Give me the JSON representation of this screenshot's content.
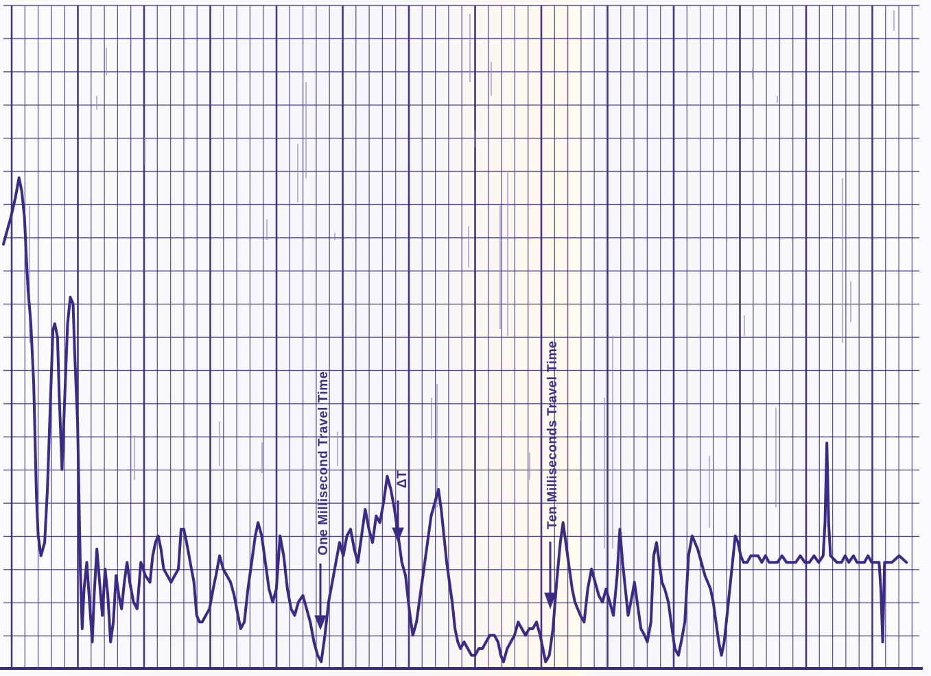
{
  "chart_data": {
    "type": "line",
    "title": "",
    "xlabel": "",
    "ylabel": "",
    "grid": true,
    "legend": "none",
    "colors": {
      "paper": "#fbfaff",
      "grid": "#3a2d7c",
      "trace": "#3b2a86",
      "faint_trace": "#8f87c7"
    },
    "annotations": {
      "one_ms": "One Millisecond Travel Time",
      "ten_ms": "Ten Milliseconds Travel Time",
      "delta_t": "ΔT"
    },
    "x_range": [
      0,
      1000
    ],
    "y_range": [
      0,
      100
    ],
    "trace": [
      [
        0,
        64
      ],
      [
        4,
        66
      ],
      [
        8,
        68
      ],
      [
        13,
        71
      ],
      [
        17,
        74
      ],
      [
        20,
        72
      ],
      [
        23,
        68
      ],
      [
        25,
        62
      ],
      [
        27,
        57
      ],
      [
        30,
        52
      ],
      [
        33,
        43
      ],
      [
        36,
        26
      ],
      [
        38,
        20
      ],
      [
        41,
        17
      ],
      [
        45,
        19
      ],
      [
        48,
        27
      ],
      [
        51,
        39
      ],
      [
        54,
        51
      ],
      [
        56,
        52
      ],
      [
        59,
        50
      ],
      [
        61,
        41
      ],
      [
        64,
        30
      ],
      [
        67,
        41
      ],
      [
        70,
        52
      ],
      [
        73,
        56
      ],
      [
        76,
        55
      ],
      [
        78,
        47
      ],
      [
        81,
        37
      ],
      [
        84,
        15
      ],
      [
        86,
        6
      ],
      [
        88,
        12
      ],
      [
        91,
        16
      ],
      [
        94,
        10
      ],
      [
        97,
        4
      ],
      [
        99,
        11
      ],
      [
        102,
        18
      ],
      [
        105,
        13
      ],
      [
        108,
        8
      ],
      [
        111,
        15
      ],
      [
        114,
        11
      ],
      [
        117,
        4
      ],
      [
        120,
        7
      ],
      [
        123,
        14
      ],
      [
        126,
        11
      ],
      [
        129,
        9
      ],
      [
        132,
        13
      ],
      [
        135,
        16
      ],
      [
        138,
        13
      ],
      [
        142,
        10
      ],
      [
        146,
        9
      ],
      [
        150,
        16
      ],
      [
        155,
        14
      ],
      [
        160,
        13
      ],
      [
        163,
        17
      ],
      [
        166,
        19
      ],
      [
        169,
        20
      ],
      [
        172,
        18
      ],
      [
        175,
        15
      ],
      [
        179,
        14
      ],
      [
        183,
        13
      ],
      [
        187,
        14
      ],
      [
        191,
        15
      ],
      [
        194,
        21
      ],
      [
        197,
        21
      ],
      [
        200,
        19
      ],
      [
        204,
        16
      ],
      [
        208,
        13
      ],
      [
        211,
        8
      ],
      [
        214,
        7
      ],
      [
        217,
        7
      ],
      [
        221,
        8
      ],
      [
        225,
        9
      ],
      [
        229,
        12
      ],
      [
        232,
        14
      ],
      [
        236,
        17
      ],
      [
        240,
        15
      ],
      [
        244,
        14
      ],
      [
        248,
        13
      ],
      [
        252,
        11
      ],
      [
        256,
        8
      ],
      [
        259,
        6
      ],
      [
        263,
        7
      ],
      [
        267,
        12
      ],
      [
        271,
        16
      ],
      [
        275,
        20
      ],
      [
        278,
        22
      ],
      [
        282,
        20
      ],
      [
        286,
        16
      ],
      [
        290,
        12
      ],
      [
        294,
        10
      ],
      [
        298,
        12
      ],
      [
        302,
        20
      ],
      [
        306,
        17
      ],
      [
        310,
        12
      ],
      [
        314,
        9
      ],
      [
        318,
        8
      ],
      [
        322,
        10
      ],
      [
        327,
        11
      ],
      [
        331,
        9
      ],
      [
        335,
        7
      ],
      [
        339,
        4
      ],
      [
        343,
        2
      ],
      [
        347,
        1
      ],
      [
        351,
        5
      ],
      [
        355,
        10
      ],
      [
        359,
        13
      ],
      [
        363,
        16
      ],
      [
        367,
        19
      ],
      [
        371,
        17
      ],
      [
        375,
        20
      ],
      [
        379,
        21
      ],
      [
        383,
        18
      ],
      [
        387,
        16
      ],
      [
        391,
        20
      ],
      [
        395,
        24
      ],
      [
        399,
        21
      ],
      [
        403,
        19
      ],
      [
        407,
        23
      ],
      [
        411,
        22
      ],
      [
        415,
        25
      ],
      [
        419,
        29
      ],
      [
        423,
        27
      ],
      [
        427,
        24
      ],
      [
        431,
        20
      ],
      [
        435,
        16
      ],
      [
        439,
        14
      ],
      [
        443,
        9
      ],
      [
        447,
        5
      ],
      [
        451,
        7
      ],
      [
        455,
        11
      ],
      [
        459,
        15
      ],
      [
        463,
        19
      ],
      [
        467,
        23
      ],
      [
        471,
        25
      ],
      [
        475,
        27
      ],
      [
        478,
        24
      ],
      [
        481,
        20
      ],
      [
        484,
        16
      ],
      [
        487,
        13
      ],
      [
        490,
        10
      ],
      [
        493,
        6
      ],
      [
        496,
        4
      ],
      [
        499,
        3
      ],
      [
        503,
        4
      ],
      [
        507,
        3
      ],
      [
        511,
        2
      ],
      [
        515,
        2
      ],
      [
        519,
        3
      ],
      [
        523,
        3
      ],
      [
        527,
        4
      ],
      [
        531,
        5
      ],
      [
        536,
        5
      ],
      [
        540,
        4
      ],
      [
        543,
        2
      ],
      [
        546,
        1
      ],
      [
        550,
        3
      ],
      [
        554,
        4
      ],
      [
        558,
        5
      ],
      [
        562,
        7
      ],
      [
        566,
        6
      ],
      [
        570,
        5
      ],
      [
        574,
        6
      ],
      [
        578,
        6
      ],
      [
        582,
        7
      ],
      [
        586,
        5
      ],
      [
        589,
        3
      ],
      [
        592,
        1
      ],
      [
        596,
        2
      ],
      [
        600,
        6
      ],
      [
        604,
        13
      ],
      [
        608,
        19
      ],
      [
        611,
        22
      ],
      [
        614,
        19
      ],
      [
        618,
        15
      ],
      [
        621,
        12
      ],
      [
        624,
        10
      ],
      [
        627,
        9
      ],
      [
        630,
        8
      ],
      [
        634,
        7
      ],
      [
        638,
        12
      ],
      [
        642,
        15
      ],
      [
        646,
        13
      ],
      [
        650,
        11
      ],
      [
        654,
        10
      ],
      [
        658,
        12
      ],
      [
        662,
        10
      ],
      [
        666,
        8
      ],
      [
        670,
        14
      ],
      [
        673,
        21
      ],
      [
        676,
        16
      ],
      [
        679,
        12
      ],
      [
        682,
        8
      ],
      [
        685,
        10
      ],
      [
        689,
        13
      ],
      [
        692,
        10
      ],
      [
        696,
        6
      ],
      [
        700,
        5
      ],
      [
        703,
        4
      ],
      [
        707,
        7
      ],
      [
        710,
        17
      ],
      [
        713,
        19
      ],
      [
        716,
        16
      ],
      [
        719,
        13
      ],
      [
        722,
        12
      ],
      [
        726,
        10
      ],
      [
        730,
        6
      ],
      [
        733,
        3
      ],
      [
        737,
        2
      ],
      [
        740,
        4
      ],
      [
        744,
        7
      ],
      [
        748,
        17
      ],
      [
        752,
        20
      ],
      [
        755,
        19
      ],
      [
        758,
        18
      ],
      [
        762,
        16
      ],
      [
        766,
        14
      ],
      [
        769,
        13
      ],
      [
        772,
        12
      ],
      [
        775,
        10
      ],
      [
        778,
        7
      ],
      [
        781,
        4
      ],
      [
        784,
        2
      ],
      [
        787,
        4
      ],
      [
        790,
        8
      ],
      [
        793,
        12
      ],
      [
        796,
        16
      ],
      [
        799,
        20
      ],
      [
        802,
        19
      ],
      [
        805,
        17
      ],
      [
        808,
        16
      ],
      [
        812,
        16
      ],
      [
        816,
        17
      ],
      [
        820,
        17
      ],
      [
        824,
        17
      ],
      [
        828,
        16
      ],
      [
        832,
        17
      ],
      [
        836,
        16
      ],
      [
        840,
        16
      ],
      [
        845,
        16
      ],
      [
        850,
        17
      ],
      [
        855,
        16
      ],
      [
        860,
        16
      ],
      [
        865,
        16
      ],
      [
        870,
        17
      ],
      [
        875,
        16
      ],
      [
        880,
        16
      ],
      [
        885,
        17
      ],
      [
        890,
        16
      ],
      [
        895,
        17
      ],
      [
        897,
        22
      ],
      [
        899,
        34
      ],
      [
        901,
        22
      ],
      [
        903,
        17
      ],
      [
        910,
        16
      ],
      [
        915,
        16
      ],
      [
        919,
        17
      ],
      [
        923,
        16
      ],
      [
        928,
        17
      ],
      [
        932,
        16
      ],
      [
        936,
        16
      ],
      [
        940,
        16
      ],
      [
        944,
        17
      ],
      [
        948,
        16
      ],
      [
        952,
        16
      ],
      [
        956,
        16
      ],
      [
        958,
        12
      ],
      [
        960,
        4
      ],
      [
        962,
        16
      ],
      [
        970,
        16
      ],
      [
        978,
        17
      ],
      [
        986,
        16
      ]
    ]
  }
}
